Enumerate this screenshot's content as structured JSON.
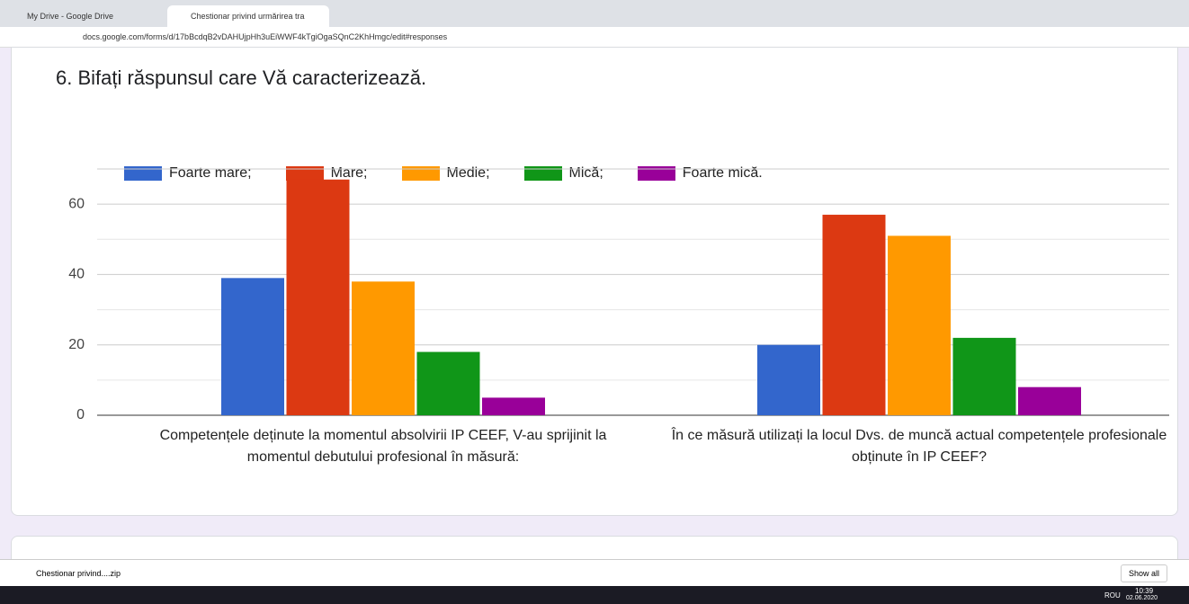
{
  "browser": {
    "tabs": [
      "My Drive - Google Drive",
      "Chestionar privind urmărirea tra"
    ],
    "url": "docs.google.com/forms/d/17bBcdqB2vDAHUjpHh3uEiWWF4kTgiOgaSQnC2KhHmgc/edit#responses"
  },
  "chart_data": {
    "type": "bar",
    "title": "6. Bifați răspunsul care Vă caracterizează.",
    "categories": [
      "Competențele deținute la momentul absolvirii IP CEEF, V-au sprijinit la momentul debutului profesional în măsură:",
      "În ce măsură utilizați la locul Dvs. de muncă actual competențele profesionale obținute în IP CEEF?"
    ],
    "series": [
      {
        "name": "Foarte mare;",
        "color": "#3366cc",
        "values": [
          39,
          20
        ]
      },
      {
        "name": "Mare;",
        "color": "#dc3912",
        "values": [
          67,
          57
        ]
      },
      {
        "name": "Medie;",
        "color": "#ff9900",
        "values": [
          38,
          51
        ]
      },
      {
        "name": "Mică;",
        "color": "#109618",
        "values": [
          18,
          22
        ]
      },
      {
        "name": "Foarte mică.",
        "color": "#990099",
        "values": [
          5,
          8
        ]
      }
    ],
    "ylim": [
      0,
      70
    ],
    "yticks": [
      0,
      20,
      40,
      60
    ],
    "grid": true,
    "legend": "top"
  },
  "downloads": {
    "file": "Chestionar privind....zip",
    "show_all": "Show all"
  },
  "taskbar": {
    "language": "ROU",
    "time": "10:39",
    "date": "02.06.2020"
  }
}
